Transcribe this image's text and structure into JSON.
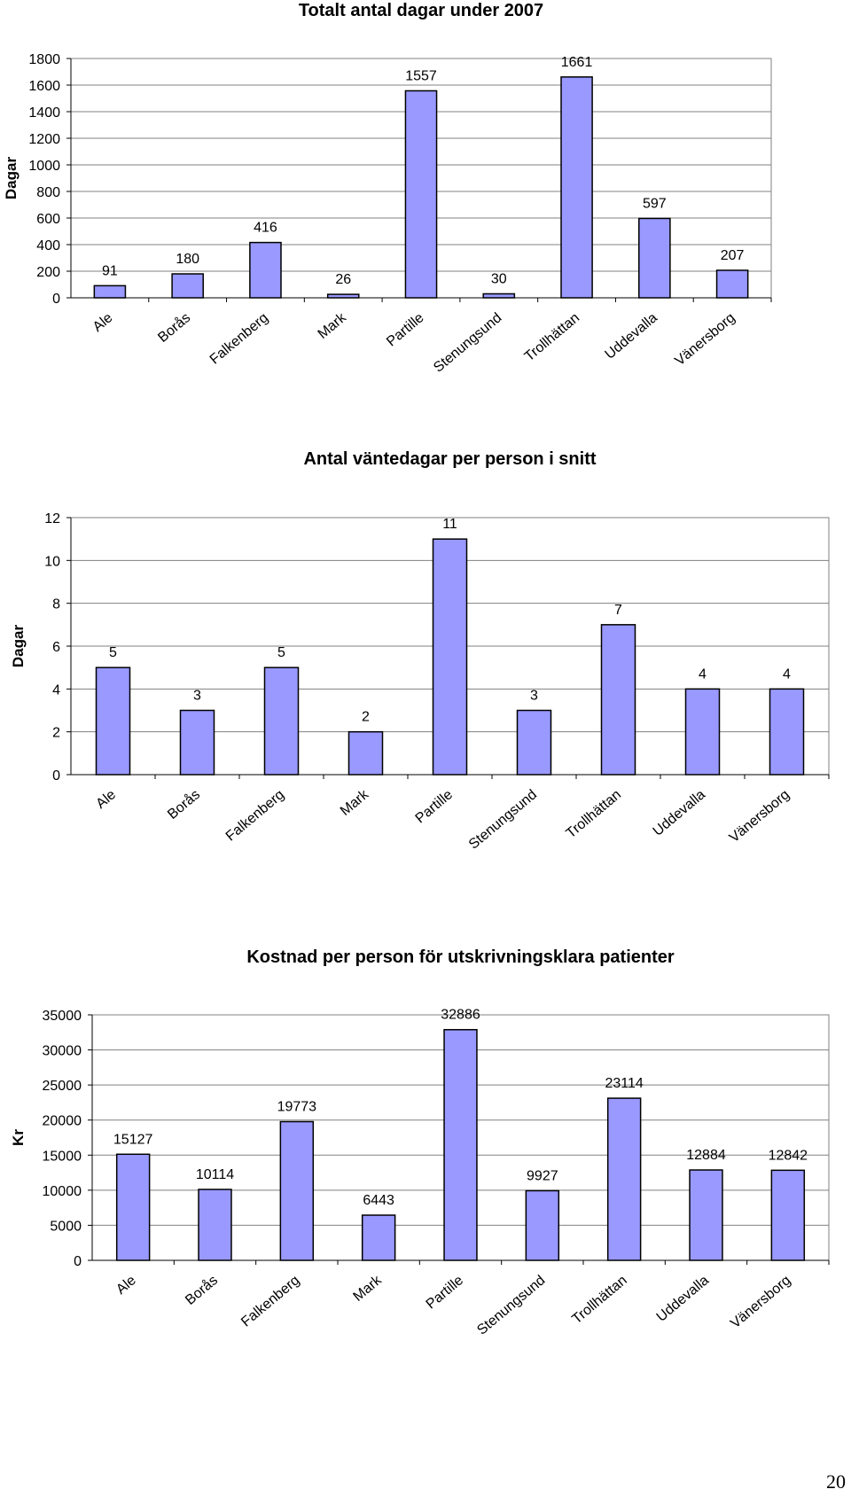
{
  "chart_data": [
    {
      "type": "bar",
      "title": "Totalt antal dagar under 2007",
      "ylabel": "Dagar",
      "xlabel": "",
      "categories": [
        "Ale",
        "Borås",
        "Falkenberg",
        "Mark",
        "Partille",
        "Stenungsund",
        "Trollhättan",
        "Uddevalla",
        "Vänersborg"
      ],
      "values": [
        91,
        180,
        416,
        26,
        1557,
        30,
        1661,
        597,
        207
      ],
      "ylim": [
        0,
        1800
      ],
      "yticks": [
        "0",
        "200",
        "400",
        "600",
        "800",
        "1000",
        "1200",
        "1400",
        "1600",
        "1800"
      ],
      "grid": true,
      "legend": "none",
      "bar_color": "#9999ff"
    },
    {
      "type": "bar",
      "title": "Antal väntedagar per person i snitt",
      "ylabel": "Dagar",
      "xlabel": "",
      "categories": [
        "Ale",
        "Borås",
        "Falkenberg",
        "Mark",
        "Partille",
        "Stenungsund",
        "Trollhättan",
        "Uddevalla",
        "Vänersborg"
      ],
      "values": [
        5,
        3,
        5,
        2,
        11,
        3,
        7,
        4,
        4
      ],
      "ylim": [
        0,
        12
      ],
      "yticks": [
        "0",
        "2",
        "4",
        "6",
        "8",
        "10",
        "12"
      ],
      "grid": true,
      "legend": "none",
      "bar_color": "#9999ff"
    },
    {
      "type": "bar",
      "title": "Kostnad per person för utskrivningsklara patienter",
      "ylabel": "Kr",
      "xlabel": "",
      "categories": [
        "Ale",
        "Borås",
        "Falkenberg",
        "Mark",
        "Partille",
        "Stenungsund",
        "Trollhättan",
        "Uddevalla",
        "Vänersborg"
      ],
      "values": [
        15127,
        10114,
        19773,
        6443,
        32886,
        9927,
        23114,
        12884,
        12842
      ],
      "ylim": [
        0,
        35000
      ],
      "yticks": [
        "0",
        "5000",
        "10000",
        "15000",
        "20000",
        "25000",
        "30000",
        "35000"
      ],
      "grid": true,
      "legend": "none",
      "bar_color": "#9999ff"
    }
  ],
  "page": {
    "number": "20"
  }
}
